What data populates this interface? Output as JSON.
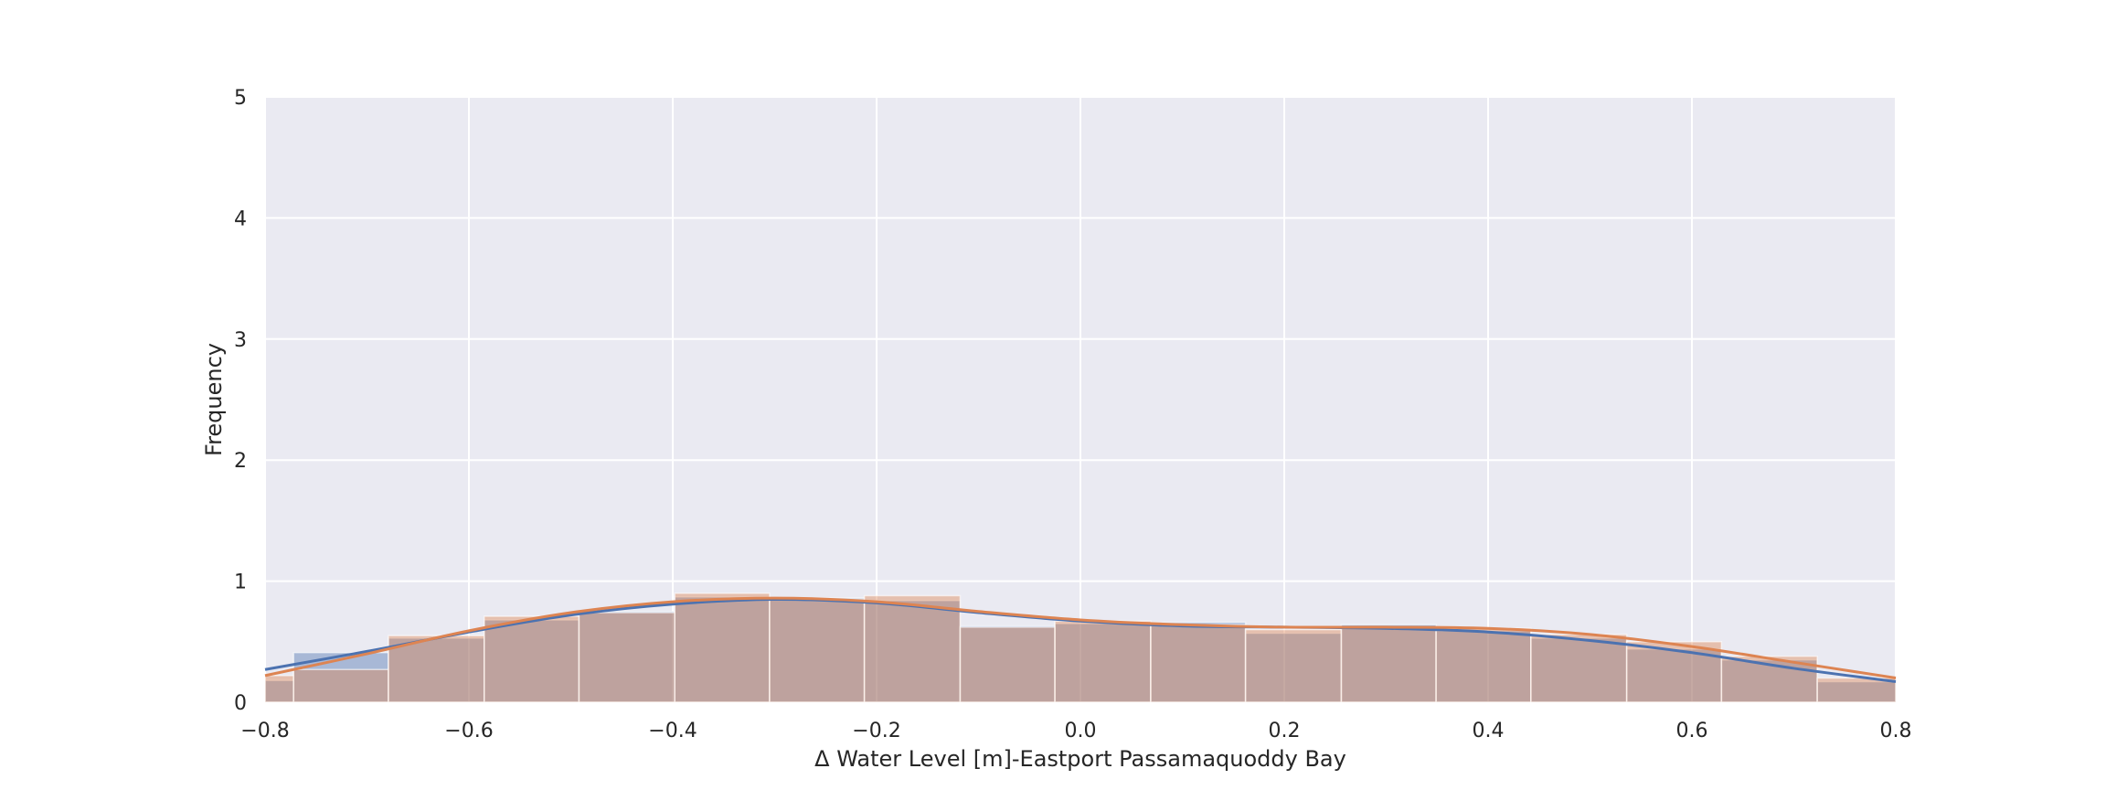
{
  "chart_data": {
    "type": "bar",
    "title": "",
    "xlabel": "Δ Water Level [m]-Eastport Passamaquoddy Bay",
    "ylabel": "Frequency",
    "xlim": [
      -0.8,
      0.8
    ],
    "ylim": [
      0,
      5
    ],
    "x_ticks": [
      -0.8,
      -0.6,
      -0.4,
      -0.2,
      0.0,
      0.2,
      0.4,
      0.6,
      0.8
    ],
    "x_tick_labels": [
      "−0.8",
      "−0.6",
      "−0.4",
      "−0.2",
      "0.0",
      "0.2",
      "0.4",
      "0.6",
      "0.8"
    ],
    "y_ticks": [
      0,
      1,
      2,
      3,
      4,
      5
    ],
    "y_tick_labels": [
      "0",
      "1",
      "2",
      "3",
      "4",
      "5"
    ],
    "grid": true,
    "legend": "none",
    "colors": {
      "background": "#eaeaf2",
      "grid": "#ffffff",
      "series1": "#4c72b0",
      "series2": "#dd8452",
      "kde1": "#4c72b0",
      "kde2": "#dd8452"
    },
    "series": [
      {
        "bins": [
          [
            -0.8,
            -0.772,
            0.18
          ],
          [
            -0.772,
            -0.679,
            0.41
          ],
          [
            -0.679,
            -0.585,
            0.53
          ],
          [
            -0.585,
            -0.492,
            0.68
          ],
          [
            -0.492,
            -0.398,
            0.75
          ],
          [
            -0.398,
            -0.305,
            0.87
          ],
          [
            -0.305,
            -0.212,
            0.86
          ],
          [
            -0.212,
            -0.118,
            0.84
          ],
          [
            -0.118,
            -0.025,
            0.63
          ],
          [
            -0.025,
            0.069,
            0.65
          ],
          [
            0.069,
            0.162,
            0.66
          ],
          [
            0.162,
            0.256,
            0.57
          ],
          [
            0.256,
            0.349,
            0.64
          ],
          [
            0.349,
            0.442,
            0.59
          ],
          [
            0.442,
            0.536,
            0.53
          ],
          [
            0.536,
            0.629,
            0.44
          ],
          [
            0.629,
            0.723,
            0.35
          ],
          [
            0.723,
            0.8,
            0.17
          ]
        ],
        "kde": [
          [
            -0.8,
            0.27
          ],
          [
            -0.7,
            0.42
          ],
          [
            -0.6,
            0.58
          ],
          [
            -0.5,
            0.72
          ],
          [
            -0.4,
            0.81
          ],
          [
            -0.3,
            0.85
          ],
          [
            -0.2,
            0.82
          ],
          [
            -0.1,
            0.74
          ],
          [
            0.0,
            0.67
          ],
          [
            0.1,
            0.63
          ],
          [
            0.2,
            0.62
          ],
          [
            0.3,
            0.61
          ],
          [
            0.4,
            0.58
          ],
          [
            0.5,
            0.51
          ],
          [
            0.6,
            0.41
          ],
          [
            0.7,
            0.28
          ],
          [
            0.8,
            0.17
          ]
        ]
      },
      {
        "bins": [
          [
            -0.8,
            -0.772,
            0.22
          ],
          [
            -0.772,
            -0.679,
            0.27
          ],
          [
            -0.679,
            -0.585,
            0.55
          ],
          [
            -0.585,
            -0.492,
            0.71
          ],
          [
            -0.492,
            -0.398,
            0.74
          ],
          [
            -0.398,
            -0.305,
            0.9
          ],
          [
            -0.305,
            -0.212,
            0.85
          ],
          [
            -0.212,
            -0.118,
            0.88
          ],
          [
            -0.118,
            -0.025,
            0.62
          ],
          [
            -0.025,
            0.069,
            0.67
          ],
          [
            0.069,
            0.162,
            0.64
          ],
          [
            0.162,
            0.256,
            0.6
          ],
          [
            0.256,
            0.349,
            0.62
          ],
          [
            0.349,
            0.442,
            0.61
          ],
          [
            0.442,
            0.536,
            0.56
          ],
          [
            0.536,
            0.629,
            0.5
          ],
          [
            0.629,
            0.723,
            0.38
          ],
          [
            0.723,
            0.8,
            0.2
          ]
        ],
        "kde": [
          [
            -0.8,
            0.22
          ],
          [
            -0.7,
            0.4
          ],
          [
            -0.6,
            0.59
          ],
          [
            -0.5,
            0.74
          ],
          [
            -0.4,
            0.83
          ],
          [
            -0.3,
            0.86
          ],
          [
            -0.2,
            0.83
          ],
          [
            -0.1,
            0.75
          ],
          [
            0.0,
            0.68
          ],
          [
            0.1,
            0.64
          ],
          [
            0.2,
            0.62
          ],
          [
            0.3,
            0.62
          ],
          [
            0.4,
            0.61
          ],
          [
            0.5,
            0.56
          ],
          [
            0.6,
            0.46
          ],
          [
            0.7,
            0.33
          ],
          [
            0.8,
            0.2
          ]
        ]
      }
    ]
  }
}
